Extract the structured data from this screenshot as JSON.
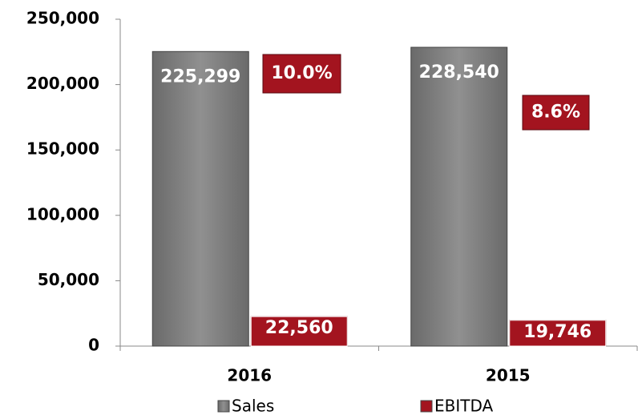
{
  "chart_data": {
    "type": "bar",
    "categories": [
      "2016",
      "2015"
    ],
    "series": [
      {
        "name": "Sales",
        "color": "#7a7a7a",
        "values": [
          225299,
          228540
        ],
        "value_labels": [
          "225,299",
          "228,540"
        ]
      },
      {
        "name": "EBITDA",
        "color": "#a3141f",
        "values": [
          22560,
          19746
        ],
        "value_labels": [
          "22,560",
          "19,746"
        ]
      }
    ],
    "annotations": [
      "10.0%",
      "8.6%"
    ],
    "ylim": [
      0,
      250000
    ],
    "yticks": [
      0,
      {
        "value": 50000,
        "label": "50,000"
      },
      {
        "value": 100000,
        "label": "100,000"
      },
      {
        "value": 150000,
        "label": "150,000"
      },
      {
        "value": 200000,
        "label": "200,000"
      },
      {
        "value": 250000,
        "label": "250,000"
      }
    ],
    "grid": false,
    "legend": "bottom"
  }
}
